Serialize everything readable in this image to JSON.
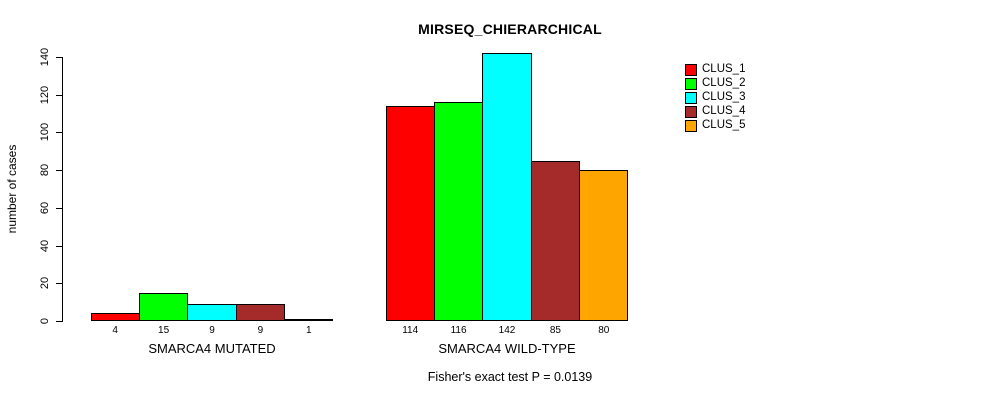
{
  "title": "MIRSEQ_CHIERARCHICAL",
  "footer": "Fisher's exact test P = 0.0139",
  "chart_data": {
    "type": "bar",
    "title": "MIRSEQ_CHIERARCHICAL",
    "ylabel": "number of cases",
    "ylim": [
      0,
      140
    ],
    "yticks": [
      0,
      20,
      40,
      60,
      80,
      100,
      120,
      140
    ],
    "grid": false,
    "legend_position": "right",
    "series": [
      {
        "name": "CLUS_1",
        "color": "#FF0000"
      },
      {
        "name": "CLUS_2",
        "color": "#00FF00"
      },
      {
        "name": "CLUS_3",
        "color": "#00FFFF"
      },
      {
        "name": "CLUS_4",
        "color": "#A52A2A"
      },
      {
        "name": "CLUS_5",
        "color": "#FFA500"
      }
    ],
    "groups": [
      {
        "label": "SMARCA4 MUTATED",
        "values": [
          4,
          15,
          9,
          9,
          1
        ]
      },
      {
        "label": "SMARCA4 WILD-TYPE",
        "values": [
          114,
          116,
          142,
          85,
          80
        ]
      }
    ],
    "bar_value_labels_shown": true,
    "annotation": "Fisher's exact test P = 0.0139"
  }
}
